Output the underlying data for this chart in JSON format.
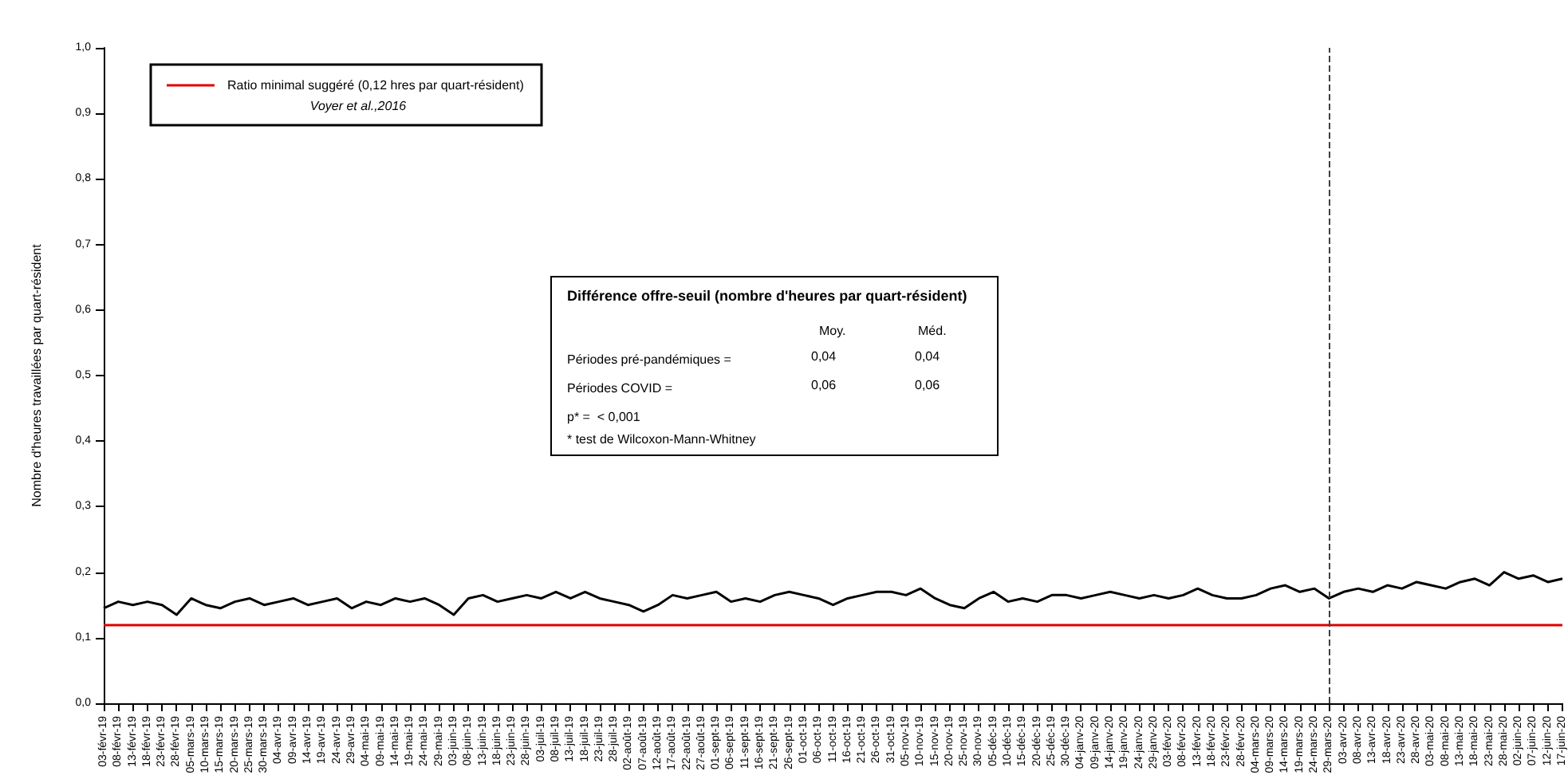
{
  "chart_data": {
    "type": "line",
    "ylabel": "Nombre d'heures travaillées par quart-résident",
    "categories": [
      "03-févr-19",
      "08-févr-19",
      "13-févr-19",
      "18-févr-19",
      "23-févr-19",
      "28-févr-19",
      "05-mars-19",
      "10-mars-19",
      "15-mars-19",
      "20-mars-19",
      "25-mars-19",
      "30-mars-19",
      "04-avr-19",
      "09-avr-19",
      "14-avr-19",
      "19-avr-19",
      "24-avr-19",
      "29-avr-19",
      "04-mai-19",
      "09-mai-19",
      "14-mai-19",
      "19-mai-19",
      "24-mai-19",
      "29-mai-19",
      "03-juin-19",
      "08-juin-19",
      "13-juin-19",
      "18-juin-19",
      "23-juin-19",
      "28-juin-19",
      "03-juil-19",
      "08-juil-19",
      "13-juil-19",
      "18-juil-19",
      "23-juil-19",
      "28-juil-19",
      "02-août-19",
      "07-août-19",
      "12-août-19",
      "17-août-19",
      "22-août-19",
      "27-août-19",
      "01-sept-19",
      "06-sept-19",
      "11-sept-19",
      "16-sept-19",
      "21-sept-19",
      "26-sept-19",
      "01-oct-19",
      "06-oct-19",
      "11-oct-19",
      "16-oct-19",
      "21-oct-19",
      "26-oct-19",
      "31-oct-19",
      "05-nov-19",
      "10-nov-19",
      "15-nov-19",
      "20-nov-19",
      "25-nov-19",
      "30-nov-19",
      "05-déc-19",
      "10-déc-19",
      "15-déc-19",
      "20-déc-19",
      "25-déc-19",
      "30-déc-19",
      "04-janv-20",
      "09-janv-20",
      "14-janv-20",
      "19-janv-20",
      "24-janv-20",
      "29-janv-20",
      "03-févr-20",
      "08-févr-20",
      "13-févr-20",
      "18-févr-20",
      "23-févr-20",
      "28-févr-20",
      "04-mars-20",
      "09-mars-20",
      "14-mars-20",
      "19-mars-20",
      "24-mars-20",
      "29-mars-20",
      "03-avr-20",
      "08-avr-20",
      "13-avr-20",
      "18-avr-20",
      "23-avr-20",
      "28-avr-20",
      "03-mai-20",
      "08-mai-20",
      "13-mai-20",
      "18-mai-20",
      "23-mai-20",
      "28-mai-20",
      "02-juin-20",
      "07-juin-20",
      "12-juin-20",
      "17-juin-20"
    ],
    "series": [
      {
        "color": "#000000",
        "values": [
          0.145,
          0.155,
          0.15,
          0.155,
          0.15,
          0.135,
          0.16,
          0.15,
          0.145,
          0.155,
          0.16,
          0.15,
          0.155,
          0.16,
          0.15,
          0.155,
          0.16,
          0.145,
          0.155,
          0.15,
          0.16,
          0.155,
          0.16,
          0.15,
          0.135,
          0.16,
          0.165,
          0.155,
          0.16,
          0.165,
          0.16,
          0.17,
          0.16,
          0.17,
          0.16,
          0.155,
          0.15,
          0.14,
          0.15,
          0.165,
          0.16,
          0.165,
          0.17,
          0.155,
          0.16,
          0.155,
          0.165,
          0.17,
          0.165,
          0.16,
          0.15,
          0.16,
          0.165,
          0.17,
          0.17,
          0.165,
          0.175,
          0.16,
          0.15,
          0.145,
          0.16,
          0.17,
          0.155,
          0.16,
          0.155,
          0.165,
          0.165,
          0.16,
          0.165,
          0.17,
          0.165,
          0.16,
          0.165,
          0.16,
          0.165,
          0.175,
          0.165,
          0.16,
          0.16,
          0.165,
          0.175,
          0.18,
          0.17,
          0.175,
          0.16,
          0.17,
          0.175,
          0.17,
          0.18,
          0.175,
          0.185,
          0.18,
          0.175,
          0.185,
          0.19,
          0.18,
          0.2,
          0.19,
          0.195,
          0.185,
          0.19
        ]
      }
    ],
    "ylim": [
      0,
      1
    ],
    "yticks": [
      {
        "value": 0,
        "label": "0,0"
      },
      {
        "value": 0.1,
        "label": "0,1"
      },
      {
        "value": 0.2,
        "label": "0,2"
      },
      {
        "value": 0.3,
        "label": "0,3"
      },
      {
        "value": 0.4,
        "label": "0,4"
      },
      {
        "value": 0.5,
        "label": "0,5"
      },
      {
        "value": 0.6,
        "label": "0,6"
      },
      {
        "value": 0.7,
        "label": "0,7"
      },
      {
        "value": 0.8,
        "label": "0,8"
      },
      {
        "value": 0.9,
        "label": "0,9"
      },
      {
        "value": 1,
        "label": "1,0"
      }
    ],
    "marker": "none",
    "line_style": "solid",
    "grid": false,
    "ref_lines": [
      {
        "axis": "y",
        "value": 0.12,
        "label": "Ratio minimal suggéré (0,12 hres par quart-résident)",
        "color": "#e00000",
        "line_style": "solid"
      },
      {
        "axis": "x",
        "value": "29-mars-20",
        "color": "#404040",
        "line_style": "dashed"
      }
    ],
    "annotations": [
      "Voyer et al.,2016",
      "Différence offre-seuil (nombre d'heures par quart-résident)",
      "Moy.",
      "Méd.",
      "Périodes pré-pandémiques =",
      "0,04",
      "0,04",
      "Périodes COVID =",
      "0,06",
      "0,06",
      "p* =  < 0,001",
      "* test de Wilcoxon-Mann-Whitney"
    ]
  }
}
